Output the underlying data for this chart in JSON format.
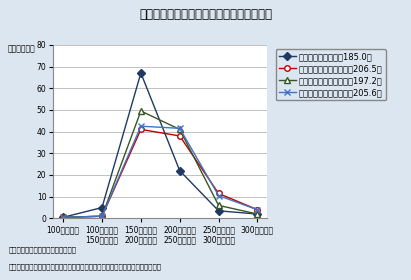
{
  "title": "図表５　適用労働時間制度別の労働者分布",
  "ylabel": "（割合、％）",
  "ylim": [
    0,
    80
  ],
  "yticks": [
    0,
    10,
    20,
    30,
    40,
    50,
    60,
    70,
    80
  ],
  "categories": [
    "100時間未満",
    "100時間以上\n150時間未満",
    "150時間以上\n200時間未満",
    "200時間以上\n250時間未満",
    "250時間以上\n300時間未満",
    "300時間以上"
  ],
  "series": [
    {
      "label": "通常の労働時間制（185.0）",
      "values": [
        0.5,
        5.0,
        67.0,
        22.0,
        3.5,
        2.0
      ],
      "color": "#1f3864",
      "marker": "D",
      "markersize": 4,
      "linestyle": "-"
    },
    {
      "label": "専門業務型裁量労働制（206.5）",
      "values": [
        0.5,
        1.0,
        41.0,
        38.0,
        11.5,
        4.0
      ],
      "color": "#c00000",
      "marker": "o",
      "markersize": 4,
      "linestyle": "-",
      "markerfacecolor": "white"
    },
    {
      "label": "企画業務型裁量労働制（197.2）",
      "values": [
        0.5,
        1.0,
        49.5,
        41.0,
        6.0,
        2.0
      ],
      "color": "#375623",
      "marker": "^",
      "markersize": 4,
      "linestyle": "-",
      "markerfacecolor": "white"
    },
    {
      "label": "労働時間制の適用除外（205.6）",
      "values": [
        0.5,
        1.0,
        42.5,
        41.5,
        10.5,
        4.0
      ],
      "color": "#4472c4",
      "marker": "x",
      "markersize": 4,
      "linestyle": "-"
    }
  ],
  "note1": "（注）（　）内は平均月間労働時間",
  "note2": "（資料）労働政策研究・研修機構「裁量労働制等の労働時間制度に関する調査」",
  "bg_color": "#dce6f1",
  "plot_bg_color": "#ffffff",
  "title_fontsize": 8.5,
  "legend_fontsize": 6.0,
  "tick_fontsize": 5.5,
  "note_fontsize": 5.0,
  "ylabel_fontsize": 5.5
}
